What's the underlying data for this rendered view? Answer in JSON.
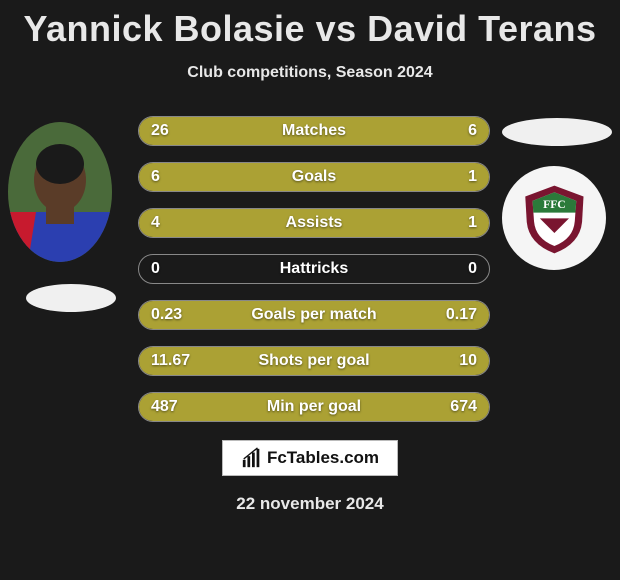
{
  "title": "Yannick Bolasie vs David Terans",
  "subtitle": "Club competitions, Season 2024",
  "footer_brand": "FcTables.com",
  "footer_date": "22 november 2024",
  "colors": {
    "background": "#1a1a1a",
    "bar": "#aba134",
    "text": "#e8e8e8",
    "border": "#888888"
  },
  "rows": [
    {
      "label": "Matches",
      "left": "26",
      "right": "6",
      "left_pct": 81,
      "right_pct": 19
    },
    {
      "label": "Goals",
      "left": "6",
      "right": "1",
      "left_pct": 86,
      "right_pct": 14
    },
    {
      "label": "Assists",
      "left": "4",
      "right": "1",
      "left_pct": 80,
      "right_pct": 20
    },
    {
      "label": "Hattricks",
      "left": "0",
      "right": "0",
      "left_pct": 0,
      "right_pct": 0
    },
    {
      "label": "Goals per match",
      "left": "0.23",
      "right": "0.17",
      "left_pct": 58,
      "right_pct": 42
    },
    {
      "label": "Shots per goal",
      "left": "11.67",
      "right": "10",
      "left_pct": 54,
      "right_pct": 46
    },
    {
      "label": "Min per goal",
      "left": "487",
      "right": "674",
      "left_pct": 42,
      "right_pct": 58
    }
  ],
  "left_player": {
    "name": "Yannick Bolasie",
    "jersey_colors": {
      "body": "#2b3fb0",
      "sleeve": "#c71a2e",
      "skin": "#5a3c28"
    }
  },
  "right_club": {
    "name_abbr": "FFC",
    "shield_colors": {
      "outer": "#7a1530",
      "inner_top": "#2b7a3a",
      "inner_bottom": "#ffffff"
    }
  }
}
